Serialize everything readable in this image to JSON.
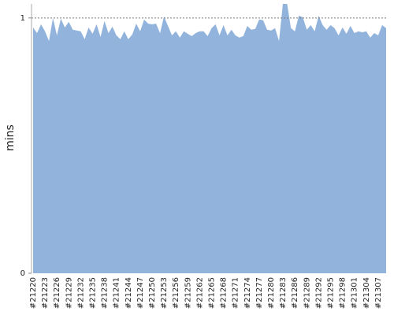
{
  "chart_data": {
    "type": "area",
    "y_label": "mins",
    "color": "#92b4dc",
    "grid": true,
    "categories": [
      "#21220",
      null,
      null,
      "#21223",
      null,
      null,
      "#21226",
      null,
      null,
      "#21229",
      null,
      null,
      "#21232",
      null,
      null,
      "#21235",
      null,
      null,
      "#21238",
      null,
      null,
      "#21241",
      null,
      null,
      "#21244",
      null,
      null,
      "#21247",
      null,
      null,
      "#21250",
      null,
      null,
      "#21253",
      null,
      null,
      "#21256",
      null,
      null,
      "#21259",
      null,
      null,
      "#21262",
      null,
      null,
      "#21265",
      null,
      null,
      "#21268",
      null,
      null,
      "#21271",
      null,
      null,
      "#21274",
      null,
      null,
      "#21277",
      null,
      null,
      "#21280",
      null,
      null,
      "#21283",
      null,
      null,
      "#21286",
      null,
      null,
      "#21289",
      null,
      null,
      "#21292",
      null,
      null,
      "#21295",
      null,
      null,
      "#21298",
      null,
      null,
      "#21301",
      null,
      null,
      "#21304",
      null,
      null,
      "#21307",
      null,
      null
    ],
    "values": [
      0.963,
      0.941,
      0.975,
      0.948,
      0.91,
      1.0,
      0.932,
      0.997,
      0.963,
      0.985,
      0.954,
      0.951,
      0.948,
      0.917,
      0.963,
      0.938,
      0.975,
      0.926,
      0.988,
      0.941,
      0.966,
      0.932,
      0.917,
      0.948,
      0.917,
      0.935,
      0.978,
      0.948,
      0.994,
      0.978,
      0.975,
      0.978,
      0.941,
      1.006,
      0.969,
      0.932,
      0.948,
      0.923,
      0.948,
      0.938,
      0.929,
      0.941,
      0.948,
      0.948,
      0.929,
      0.96,
      0.975,
      0.932,
      0.972,
      0.932,
      0.954,
      0.932,
      0.923,
      0.929,
      0.969,
      0.954,
      0.957,
      0.994,
      0.991,
      0.954,
      0.951,
      0.96,
      0.91,
      1.06,
      1.06,
      0.96,
      0.948,
      1.009,
      1.003,
      0.954,
      0.972,
      0.948,
      1.009,
      0.972,
      0.954,
      0.972,
      0.96,
      0.932,
      0.963,
      0.938,
      0.969,
      0.941,
      0.948,
      0.944,
      0.948,
      0.923,
      0.941,
      0.932,
      0.972,
      0.96
    ],
    "ylim": [
      0,
      1.055
    ],
    "yticks": [
      0,
      1
    ]
  }
}
